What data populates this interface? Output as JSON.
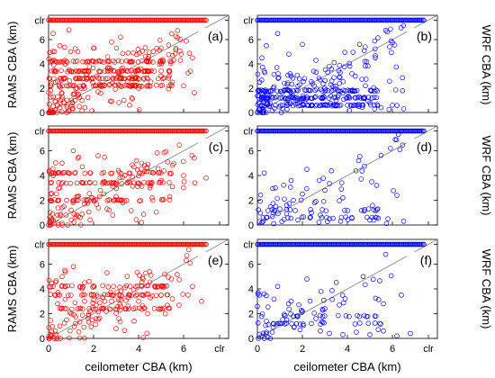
{
  "chart_data": {
    "type": "scatter",
    "grid_layout": "3 rows x 2 columns",
    "x_ticks": [
      "0",
      "2",
      "4",
      "6",
      "clr"
    ],
    "y_ticks": [
      "0",
      "2",
      "4",
      "6",
      "clr"
    ],
    "x_range": [
      0,
      8
    ],
    "y_range": [
      0,
      8
    ],
    "clr_value": 7.6,
    "xlabel": "ceilometer CBA (km)",
    "ylabel_left": "RAMS CBA (km)",
    "ylabel_right": "WRF CBA (km)",
    "reference_line": "1:1 diagonal",
    "panels": [
      {
        "label": "(a)",
        "model": "RAMS",
        "color": "#ff0000",
        "density": "high",
        "clr_row_x_range": [
          0,
          7.0
        ],
        "bands": [
          2.2,
          2.8,
          3.4,
          4.2
        ],
        "points": [
          [
            0.1,
            0.2
          ],
          [
            0.2,
            0.5
          ],
          [
            0.3,
            0.9
          ],
          [
            0.4,
            1.3
          ],
          [
            0.5,
            0.4
          ],
          [
            0.6,
            1.1
          ],
          [
            0.8,
            2.2
          ],
          [
            1.0,
            3.4
          ],
          [
            1.2,
            2.8
          ],
          [
            1.5,
            3.4
          ],
          [
            1.8,
            4.2
          ],
          [
            2.0,
            2.2
          ],
          [
            2.5,
            3.4
          ],
          [
            3.0,
            2.8
          ],
          [
            3.5,
            3.4
          ],
          [
            4.0,
            2.0
          ],
          [
            4.5,
            3.4
          ],
          [
            5.0,
            3.0
          ],
          [
            5.5,
            2.5
          ],
          [
            6.0,
            2.2
          ],
          [
            6.3,
            3.4
          ],
          [
            0.2,
            6.5
          ],
          [
            0.5,
            5.5
          ],
          [
            0.9,
            6.8
          ],
          [
            1.3,
            5.0
          ],
          [
            2.0,
            5.3
          ],
          [
            2.8,
            5.8
          ],
          [
            3.2,
            6.2
          ],
          [
            0.1,
            1.8
          ],
          [
            0.3,
            2.5
          ],
          [
            0.7,
            0.8
          ],
          [
            1.1,
            1.5
          ],
          [
            1.6,
            2.0
          ],
          [
            2.2,
            1.7
          ],
          [
            2.8,
            0.9
          ],
          [
            3.7,
            1.2
          ]
        ]
      },
      {
        "label": "(b)",
        "model": "WRF",
        "color": "#0000ff",
        "density": "high",
        "clr_row_x_range": [
          0,
          7.4
        ],
        "bands": [
          0.6,
          1.2,
          1.8
        ],
        "points": [
          [
            0.1,
            0.2
          ],
          [
            0.2,
            0.6
          ],
          [
            0.4,
            1.2
          ],
          [
            0.6,
            1.8
          ],
          [
            0.8,
            0.6
          ],
          [
            1.0,
            1.2
          ],
          [
            1.2,
            2.4
          ],
          [
            1.5,
            3.0
          ],
          [
            1.8,
            1.8
          ],
          [
            2.1,
            2.8
          ],
          [
            2.5,
            3.4
          ],
          [
            3.0,
            2.0
          ],
          [
            3.5,
            1.0
          ],
          [
            4.0,
            0.6
          ],
          [
            4.5,
            0.5
          ],
          [
            5.0,
            0.8
          ],
          [
            5.5,
            0.4
          ],
          [
            6.0,
            0.6
          ],
          [
            6.5,
            0.3
          ],
          [
            0.2,
            4.5
          ],
          [
            0.4,
            5.5
          ],
          [
            0.9,
            6.5
          ],
          [
            1.4,
            4.8
          ],
          [
            2.0,
            5.6
          ],
          [
            2.6,
            4.3
          ],
          [
            3.2,
            3.8
          ],
          [
            0.1,
            2.5
          ],
          [
            0.3,
            3.4
          ],
          [
            0.7,
            2.0
          ],
          [
            1.3,
            0.8
          ],
          [
            2.2,
            0.6
          ],
          [
            2.9,
            1.2
          ],
          [
            3.8,
            1.6
          ],
          [
            4.8,
            2.2
          ]
        ]
      },
      {
        "label": "(c)",
        "model": "RAMS",
        "color": "#ff0000",
        "density": "medium",
        "clr_row_x_range": [
          0,
          7.0
        ],
        "bands": [
          2.0,
          3.4,
          4.2
        ],
        "points": [
          [
            0.2,
            0.3
          ],
          [
            0.4,
            0.8
          ],
          [
            0.6,
            1.4
          ],
          [
            0.8,
            2.0
          ],
          [
            1.0,
            1.2
          ],
          [
            1.3,
            2.3
          ],
          [
            1.6,
            1.7
          ],
          [
            2.0,
            2.0
          ],
          [
            2.3,
            2.8
          ],
          [
            2.7,
            3.4
          ],
          [
            3.0,
            2.3
          ],
          [
            3.5,
            3.4
          ],
          [
            4.0,
            3.4
          ],
          [
            4.5,
            3.0
          ],
          [
            5.0,
            3.6
          ],
          [
            5.5,
            3.1
          ],
          [
            6.0,
            4.0
          ],
          [
            6.5,
            3.4
          ],
          [
            7.0,
            3.8
          ],
          [
            0.3,
            4.2
          ],
          [
            0.6,
            5.0
          ],
          [
            1.1,
            6.0
          ],
          [
            1.5,
            4.7
          ],
          [
            2.2,
            5.6
          ],
          [
            3.1,
            4.4
          ],
          [
            3.9,
            5.2
          ],
          [
            0.1,
            2.5
          ],
          [
            0.5,
            3.0
          ],
          [
            1.4,
            0.6
          ],
          [
            2.6,
            1.3
          ],
          [
            3.3,
            1.8
          ],
          [
            4.6,
            2.2
          ]
        ]
      },
      {
        "label": "(d)",
        "model": "WRF",
        "color": "#0000ff",
        "density": "low",
        "clr_row_x_range": [
          0,
          7.4
        ],
        "bands": [
          0.6,
          1.2
        ],
        "points": [
          [
            0.2,
            0.2
          ],
          [
            0.4,
            0.6
          ],
          [
            0.7,
            1.0
          ],
          [
            1.0,
            1.3
          ],
          [
            1.3,
            1.6
          ],
          [
            1.6,
            2.0
          ],
          [
            2.0,
            2.5
          ],
          [
            2.4,
            1.0
          ],
          [
            2.8,
            0.8
          ],
          [
            3.2,
            0.5
          ],
          [
            3.7,
            0.3
          ],
          [
            4.2,
            0.6
          ],
          [
            5.0,
            0.4
          ],
          [
            5.8,
            0.5
          ],
          [
            6.5,
            0.3
          ],
          [
            0.3,
            4.2
          ],
          [
            0.8,
            3.0
          ],
          [
            1.5,
            3.6
          ],
          [
            2.2,
            4.5
          ],
          [
            3.0,
            2.8
          ],
          [
            3.8,
            2.2
          ],
          [
            4.5,
            5.2
          ],
          [
            5.3,
            3.2
          ],
          [
            6.2,
            2.4
          ],
          [
            1.8,
            0.4
          ],
          [
            2.6,
            1.9
          ]
        ]
      },
      {
        "label": "(e)",
        "model": "RAMS",
        "color": "#ff0000",
        "density": "medium",
        "clr_row_x_range": [
          0,
          7.0
        ],
        "bands": [
          2.4,
          3.5,
          4.2
        ],
        "points": [
          [
            0.1,
            0.2
          ],
          [
            0.3,
            0.6
          ],
          [
            0.5,
            1.0
          ],
          [
            0.8,
            1.5
          ],
          [
            1.0,
            2.0
          ],
          [
            1.3,
            2.4
          ],
          [
            1.6,
            3.0
          ],
          [
            2.0,
            3.5
          ],
          [
            2.4,
            2.4
          ],
          [
            2.8,
            3.0
          ],
          [
            3.2,
            2.6
          ],
          [
            3.6,
            3.5
          ],
          [
            4.0,
            3.0
          ],
          [
            4.4,
            2.0
          ],
          [
            5.0,
            3.5
          ],
          [
            5.5,
            3.2
          ],
          [
            6.2,
            3.5
          ],
          [
            6.8,
            3.0
          ],
          [
            0.2,
            4.2
          ],
          [
            0.6,
            5.0
          ],
          [
            1.1,
            5.8
          ],
          [
            1.8,
            4.6
          ],
          [
            2.6,
            5.3
          ],
          [
            3.4,
            4.1
          ],
          [
            4.2,
            4.8
          ],
          [
            0.4,
            2.8
          ],
          [
            1.2,
            1.2
          ],
          [
            2.1,
            1.6
          ],
          [
            3.0,
            0.8
          ],
          [
            3.8,
            1.4
          ]
        ]
      },
      {
        "label": "(f)",
        "model": "WRF",
        "color": "#0000ff",
        "density": "low",
        "clr_row_x_range": [
          0,
          7.4
        ],
        "bands": [
          1.2,
          1.8
        ],
        "points": [
          [
            0.2,
            0.2
          ],
          [
            0.4,
            0.5
          ],
          [
            0.7,
            0.9
          ],
          [
            1.0,
            1.2
          ],
          [
            1.3,
            1.5
          ],
          [
            1.6,
            1.8
          ],
          [
            2.0,
            2.2
          ],
          [
            2.4,
            1.2
          ],
          [
            2.8,
            0.6
          ],
          [
            3.2,
            0.4
          ],
          [
            3.8,
            0.3
          ],
          [
            4.4,
            0.5
          ],
          [
            5.0,
            0.3
          ],
          [
            5.6,
            0.6
          ],
          [
            6.2,
            0.2
          ],
          [
            6.8,
            0.4
          ],
          [
            0.3,
            3.6
          ],
          [
            0.9,
            4.2
          ],
          [
            1.5,
            3.0
          ],
          [
            2.2,
            4.8
          ],
          [
            3.0,
            2.4
          ],
          [
            3.9,
            3.2
          ],
          [
            4.7,
            5.0
          ],
          [
            5.6,
            2.8
          ],
          [
            6.4,
            3.5
          ],
          [
            1.9,
            0.7
          ],
          [
            2.6,
            1.6
          ]
        ]
      }
    ]
  }
}
